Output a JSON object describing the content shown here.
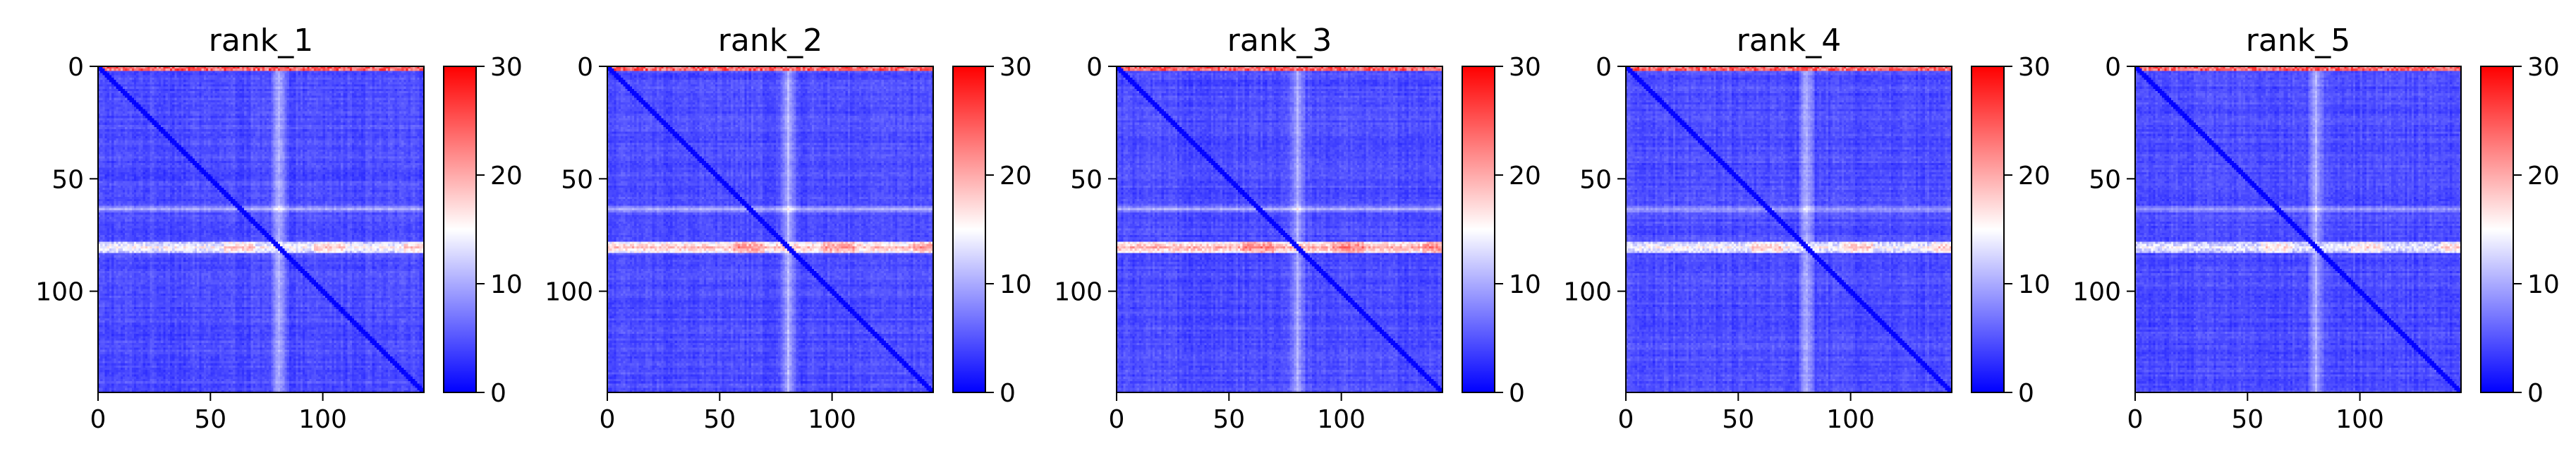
{
  "colorbar": {
    "colors": [
      "#0000ff",
      "#ffffff",
      "#ff0000"
    ],
    "range": [
      0,
      30
    ],
    "ticks": [
      "0",
      "10",
      "20",
      "30"
    ]
  },
  "chart_data": [
    {
      "type": "heatmap",
      "title": "rank_1",
      "size": 145,
      "x_ticks": [
        "0",
        "50",
        "100"
      ],
      "y_ticks": [
        "0",
        "50",
        "100"
      ],
      "xlim": [
        0,
        145
      ],
      "ylim": [
        145,
        0
      ],
      "value_range": [
        0,
        30
      ],
      "features": {
        "baseline": 3,
        "diagonal": 0,
        "band_rows": [
          78,
          82
        ],
        "band_value": 14,
        "row_63_value": 8,
        "col_80_value": 9,
        "top_rows_value": 24
      }
    },
    {
      "type": "heatmap",
      "title": "rank_2",
      "size": 145,
      "x_ticks": [
        "0",
        "50",
        "100"
      ],
      "y_ticks": [
        "0",
        "50",
        "100"
      ],
      "xlim": [
        0,
        145
      ],
      "ylim": [
        145,
        0
      ],
      "value_range": [
        0,
        30
      ],
      "features": {
        "baseline": 3,
        "diagonal": 0,
        "band_rows": [
          78,
          82
        ],
        "band_value": 17,
        "row_63_value": 8,
        "col_80_value": 9,
        "top_rows_value": 24
      }
    },
    {
      "type": "heatmap",
      "title": "rank_3",
      "size": 145,
      "x_ticks": [
        "0",
        "50",
        "100"
      ],
      "y_ticks": [
        "0",
        "50",
        "100"
      ],
      "xlim": [
        0,
        145
      ],
      "ylim": [
        145,
        0
      ],
      "value_range": [
        0,
        30
      ],
      "features": {
        "baseline": 3,
        "diagonal": 0,
        "band_rows": [
          78,
          82
        ],
        "band_value": 18,
        "row_63_value": 8,
        "col_80_value": 9,
        "top_rows_value": 24
      }
    },
    {
      "type": "heatmap",
      "title": "rank_4",
      "size": 145,
      "x_ticks": [
        "0",
        "50",
        "100"
      ],
      "y_ticks": [
        "0",
        "50",
        "100"
      ],
      "xlim": [
        0,
        145
      ],
      "ylim": [
        145,
        0
      ],
      "value_range": [
        0,
        30
      ],
      "features": {
        "baseline": 3,
        "diagonal": 0,
        "band_rows": [
          78,
          82
        ],
        "band_value": 14,
        "row_63_value": 8,
        "col_80_value": 9,
        "top_rows_value": 24
      }
    },
    {
      "type": "heatmap",
      "title": "rank_5",
      "size": 145,
      "x_ticks": [
        "0",
        "50",
        "100"
      ],
      "y_ticks": [
        "0",
        "50",
        "100"
      ],
      "xlim": [
        0,
        145
      ],
      "ylim": [
        145,
        0
      ],
      "value_range": [
        0,
        30
      ],
      "features": {
        "baseline": 3,
        "diagonal": 0,
        "band_rows": [
          78,
          82
        ],
        "band_value": 13,
        "row_63_value": 8,
        "col_80_value": 9,
        "top_rows_value": 24
      }
    }
  ]
}
